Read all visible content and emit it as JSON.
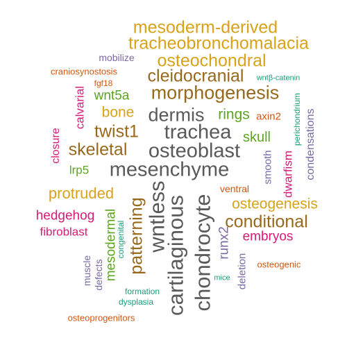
{
  "colors": {
    "gold": "#D9A21B",
    "brown": "#98691C",
    "gray": "#595959",
    "green": "#5BA51F",
    "magenta": "#D81B77",
    "purple": "#7A68A6",
    "orange": "#D4560F",
    "teal": "#1A9E77"
  },
  "words": [
    {
      "text": "mesoderm-derived"
    },
    {
      "text": "tracheobronchomalacia"
    },
    {
      "text": "mobilize"
    },
    {
      "text": "osteochondral"
    },
    {
      "text": "craniosynostosis"
    },
    {
      "text": "cleidocranial"
    },
    {
      "text": "wntβ-catenin"
    },
    {
      "text": "fgf18"
    },
    {
      "text": "morphogenesis"
    },
    {
      "text": "wnt5a"
    },
    {
      "text": "calvarial"
    },
    {
      "text": "perichondrium"
    },
    {
      "text": "bone"
    },
    {
      "text": "dermis"
    },
    {
      "text": "rings"
    },
    {
      "text": "axin2"
    },
    {
      "text": "condensations"
    },
    {
      "text": "twist1"
    },
    {
      "text": "trachea"
    },
    {
      "text": "closure"
    },
    {
      "text": "skull"
    },
    {
      "text": "skeletal"
    },
    {
      "text": "osteoblast"
    },
    {
      "text": "lrp5"
    },
    {
      "text": "smooth"
    },
    {
      "text": "mesenchyme"
    },
    {
      "text": "dwarfism"
    },
    {
      "text": "ventral"
    },
    {
      "text": "protruded"
    },
    {
      "text": "patterning"
    },
    {
      "text": "wntless"
    },
    {
      "text": "cartilaginous"
    },
    {
      "text": "chondrocyte"
    },
    {
      "text": "osteogenesis"
    },
    {
      "text": "hedgehog"
    },
    {
      "text": "conditional"
    },
    {
      "text": "fibroblast"
    },
    {
      "text": "mesodermal"
    },
    {
      "text": "congenital"
    },
    {
      "text": "embryos"
    },
    {
      "text": "runx2"
    },
    {
      "text": "osteogenic"
    },
    {
      "text": "muscle"
    },
    {
      "text": "defects"
    },
    {
      "text": "mice"
    },
    {
      "text": "deletion"
    },
    {
      "text": "formation"
    },
    {
      "text": "dysplasia"
    },
    {
      "text": "osteoprogenitors"
    }
  ]
}
